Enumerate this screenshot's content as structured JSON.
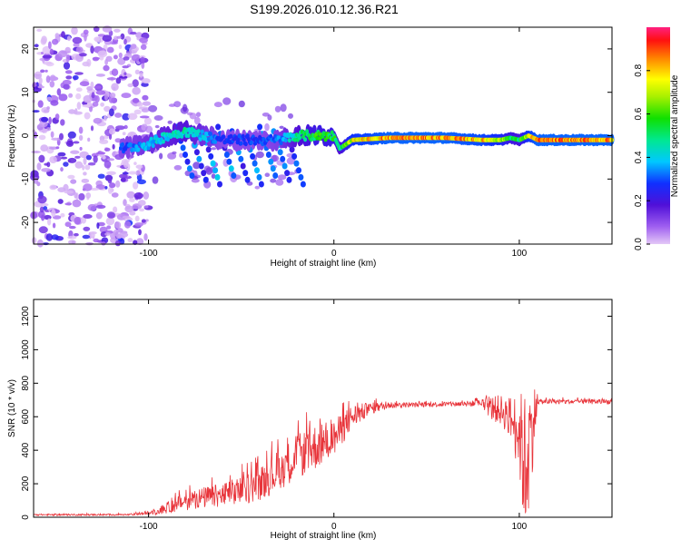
{
  "title": "S199.2026.010.12.36.R21",
  "chart_data": [
    {
      "type": "heatmap",
      "name": "spectrogram",
      "xlabel": "Height of straight line (km)",
      "ylabel": "Frequency (Hz)",
      "xlim": [
        -162,
        150
      ],
      "ylim": [
        -25,
        25
      ],
      "xticks": [
        -100,
        0,
        100
      ],
      "yticks": [
        -20,
        -10,
        0,
        10,
        20
      ],
      "colorbar": {
        "label": "Normalized spectral amplitude",
        "range": [
          0,
          1
        ],
        "ticks": [
          0.0,
          0.2,
          0.4,
          0.6,
          0.8
        ]
      },
      "signal_trace": {
        "x": [
          -115,
          -100,
          -90,
          -80,
          -70,
          -60,
          -50,
          -40,
          -30,
          -20,
          -10,
          0,
          3,
          10,
          30,
          60,
          80,
          90,
          95,
          100,
          105,
          110,
          150
        ],
        "freq": [
          -3,
          -2,
          0,
          1,
          0,
          -1,
          -1,
          -1,
          -1,
          0,
          0,
          0,
          -3,
          -1,
          -0.5,
          -0.5,
          -1,
          -1,
          -0.5,
          -1,
          0,
          -1,
          -1
        ],
        "amplitude": [
          0.3,
          0.4,
          0.45,
          0.5,
          0.4,
          0.3,
          0.3,
          0.3,
          0.35,
          0.5,
          0.6,
          0.6,
          0.5,
          0.8,
          0.9,
          0.9,
          0.85,
          0.75,
          0.6,
          0.55,
          0.8,
          0.9,
          0.9
        ]
      }
    },
    {
      "type": "line",
      "name": "snr",
      "xlabel": "Height of straight line (km)",
      "ylabel": "SNR (10 * v/v)",
      "xlim": [
        -162,
        150
      ],
      "ylim": [
        0,
        1300
      ],
      "xticks": [
        -100,
        0,
        100
      ],
      "yticks": [
        0,
        200,
        400,
        600,
        800,
        1000,
        1200
      ],
      "color": "#e8343a",
      "envelope": {
        "x": [
          -162,
          -110,
          -95,
          -85,
          -75,
          -60,
          -50,
          -40,
          -30,
          -20,
          -10,
          -5,
          0,
          10,
          20,
          30,
          40,
          60,
          80,
          85,
          90,
          95,
          100,
          103,
          105,
          108,
          110,
          130,
          150
        ],
        "base": [
          15,
          15,
          30,
          80,
          110,
          130,
          160,
          200,
          280,
          360,
          420,
          450,
          470,
          600,
          650,
          670,
          670,
          675,
          680,
          650,
          640,
          600,
          500,
          300,
          400,
          600,
          690,
          690,
          690
        ],
        "spread": [
          10,
          10,
          30,
          100,
          120,
          150,
          180,
          200,
          250,
          260,
          280,
          250,
          220,
          150,
          70,
          40,
          30,
          30,
          40,
          150,
          180,
          250,
          500,
          900,
          800,
          400,
          30,
          30,
          30
        ]
      }
    }
  ]
}
